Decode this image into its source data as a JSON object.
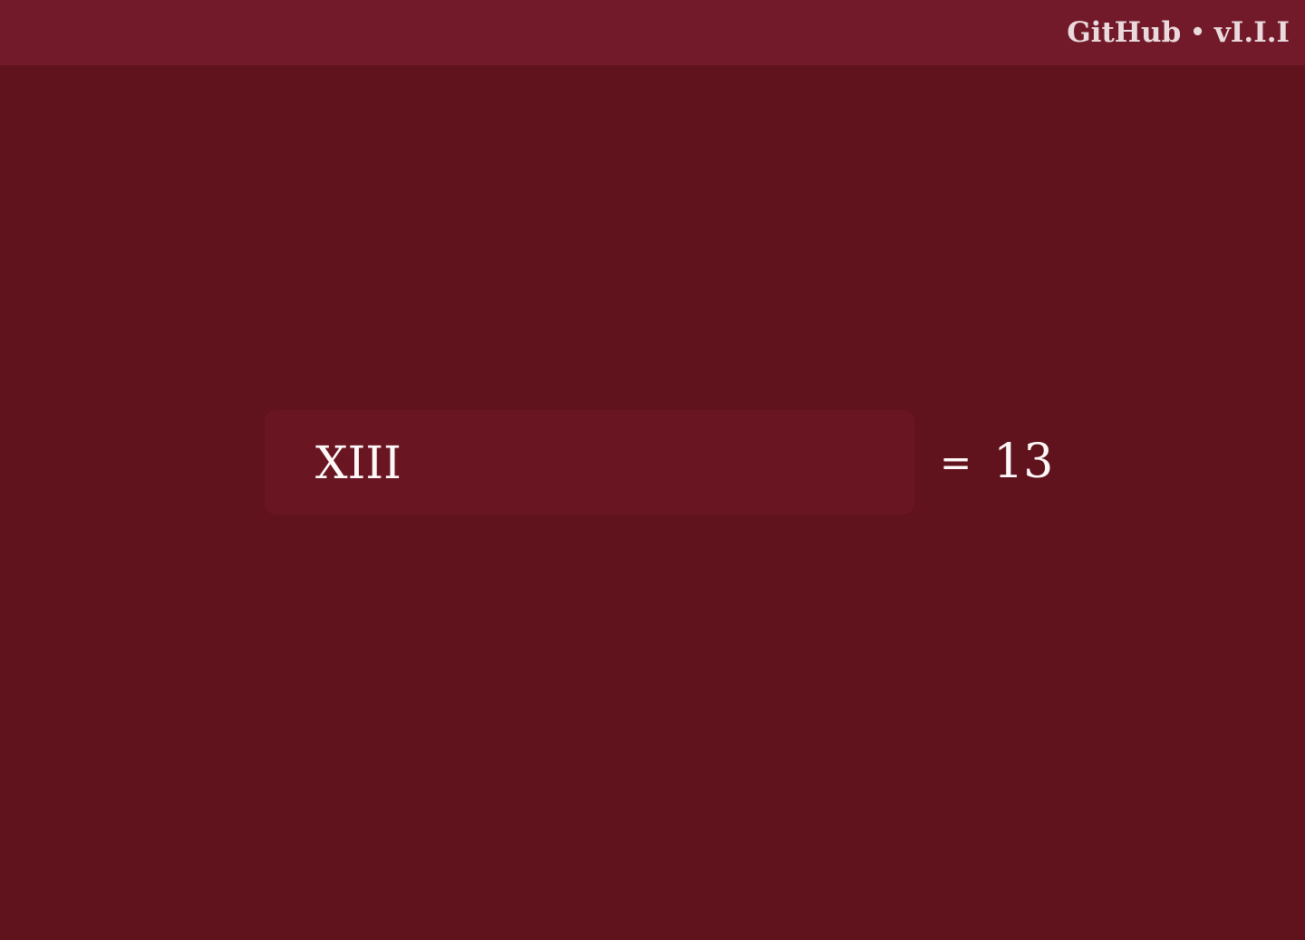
{
  "header": {
    "link_label": "GitHub",
    "separator": "•",
    "version": "vI.I.I"
  },
  "converter": {
    "input_value": "XIII",
    "equals_sign": "=",
    "result_value": "13"
  },
  "colors": {
    "background": "#60121d",
    "header_background": "#721a29",
    "input_background": "#6a1622",
    "text": "#fff8f8"
  }
}
